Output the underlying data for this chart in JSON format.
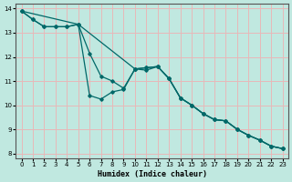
{
  "xlabel": "Humidex (Indice chaleur)",
  "bg_color": "#c0e8e0",
  "grid_color": "#e8b8b8",
  "line_color": "#006868",
  "xlim": [
    -0.5,
    23.5
  ],
  "ylim": [
    7.8,
    14.2
  ],
  "xticks": [
    0,
    1,
    2,
    3,
    4,
    5,
    6,
    7,
    8,
    9,
    10,
    11,
    12,
    13,
    14,
    15,
    16,
    17,
    18,
    19,
    20,
    21,
    22,
    23
  ],
  "yticks": [
    8,
    9,
    10,
    11,
    12,
    13,
    14
  ],
  "line1_x": [
    0,
    1,
    2,
    3,
    4,
    5,
    10,
    11,
    12,
    13,
    14,
    15,
    16,
    17,
    18,
    19,
    20,
    21,
    22,
    23
  ],
  "line1_y": [
    13.9,
    13.55,
    13.25,
    13.25,
    13.25,
    13.35,
    11.5,
    11.45,
    11.6,
    11.1,
    10.3,
    10.0,
    9.65,
    9.4,
    9.35,
    9.0,
    8.75,
    8.55,
    8.3,
    8.2
  ],
  "line2_x": [
    0,
    1,
    2,
    3,
    4,
    5,
    6,
    7,
    8,
    9,
    10,
    11,
    12,
    13,
    14,
    15,
    16,
    17,
    18,
    19,
    20,
    21,
    22,
    23
  ],
  "line2_y": [
    13.9,
    13.55,
    13.25,
    13.25,
    13.25,
    13.35,
    12.15,
    11.2,
    11.0,
    10.7,
    11.5,
    11.55,
    11.6,
    11.1,
    10.3,
    10.0,
    9.65,
    9.4,
    9.35,
    9.0,
    8.75,
    8.55,
    8.3,
    8.2
  ],
  "line3_x": [
    0,
    5,
    6,
    7,
    8,
    9,
    10,
    11,
    12,
    13,
    14,
    15,
    16,
    17,
    18,
    19,
    20,
    21,
    22,
    23
  ],
  "line3_y": [
    13.9,
    13.35,
    10.4,
    10.25,
    10.55,
    10.65,
    11.5,
    11.55,
    11.6,
    11.1,
    10.3,
    10.0,
    9.65,
    9.4,
    9.35,
    9.0,
    8.75,
    8.55,
    8.3,
    8.2
  ]
}
